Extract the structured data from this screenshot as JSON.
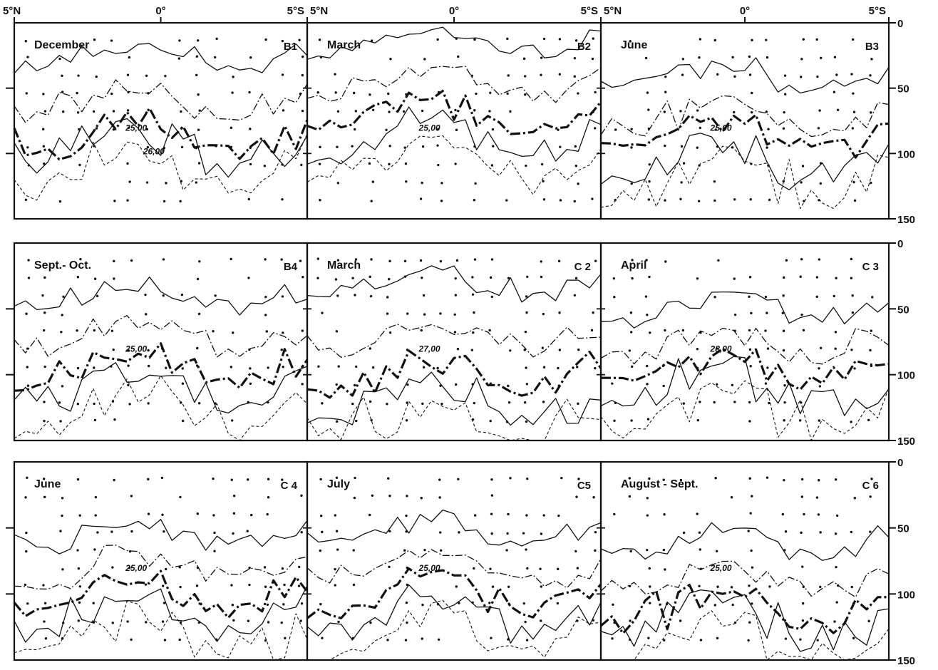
{
  "chart_data": {
    "type": "contour",
    "x_ticks": [
      "5°N",
      "0°",
      "5°S"
    ],
    "y_ticks": [
      "0",
      "50",
      "100",
      "150"
    ],
    "ylim": [
      0,
      150
    ],
    "panels": [
      {
        "month": "December",
        "code": "B1",
        "contour_labels": [
          "25,00",
          "26,00"
        ]
      },
      {
        "month": "March",
        "code": "B2",
        "contour_labels": [
          "25,00"
        ]
      },
      {
        "month": "June",
        "code": "B3",
        "contour_labels": [
          "25,00"
        ]
      },
      {
        "month": "Sept.- Oct.",
        "code": "B4",
        "contour_labels": [
          "25,00"
        ]
      },
      {
        "month": "March",
        "code": "C 2",
        "contour_labels": [
          "27,00"
        ]
      },
      {
        "month": "April",
        "code": "C 3",
        "contour_labels": [
          "28,00"
        ]
      },
      {
        "month": "June",
        "code": "C 4",
        "contour_labels": [
          "25,00"
        ]
      },
      {
        "month": "July",
        "code": "C5",
        "contour_labels": [
          "25,00"
        ]
      },
      {
        "month": "August - Sept.",
        "code": "C 6",
        "contour_labels": [
          "25,00"
        ]
      }
    ]
  }
}
